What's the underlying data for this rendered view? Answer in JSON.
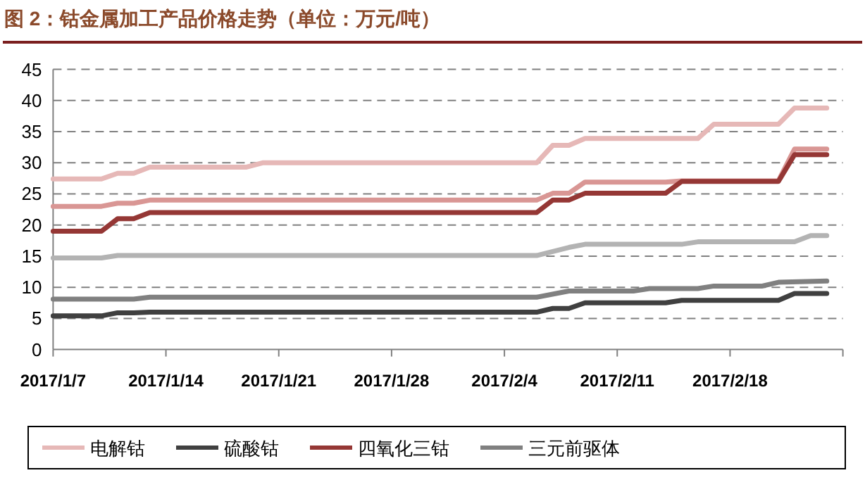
{
  "chart_data": {
    "type": "line",
    "title": "图 2：钴金属加工产品价格走势（单位：万元/吨）",
    "xlim": [
      "2017-01-07",
      "2017-02-25"
    ],
    "xticks": [
      {
        "value": "2017-01-07",
        "label": "2017/1/7"
      },
      {
        "value": "2017-01-14",
        "label": "2017/1/14"
      },
      {
        "value": "2017-01-21",
        "label": "2017/1/21"
      },
      {
        "value": "2017-01-28",
        "label": "2017/1/28"
      },
      {
        "value": "2017-02-04",
        "label": "2017/2/4"
      },
      {
        "value": "2017-02-11",
        "label": "2017/2/11"
      },
      {
        "value": "2017-02-18",
        "label": "2017/2/18"
      },
      {
        "value": "2017-02-25",
        "label": null
      }
    ],
    "ylim": [
      0,
      45
    ],
    "yticks": [
      0,
      5,
      10,
      15,
      20,
      25,
      30,
      35,
      40,
      45
    ],
    "grid": "y",
    "legend": "bottom",
    "marker": "none",
    "line_style": "solid",
    "series": [
      {
        "name": "电解钴",
        "color": "#e6b8b7",
        "x": [
          "2017-01-07",
          "2017-01-10",
          "2017-01-11",
          "2017-01-12",
          "2017-01-13",
          "2017-01-19",
          "2017-01-20",
          "2017-02-06",
          "2017-02-07",
          "2017-02-08",
          "2017-02-09",
          "2017-02-16",
          "2017-02-17",
          "2017-02-21",
          "2017-02-22",
          "2017-02-24"
        ],
        "values": [
          27.4,
          27.4,
          28.3,
          28.3,
          29.3,
          29.3,
          30,
          30,
          32.8,
          32.8,
          33.9,
          33.9,
          36.2,
          36.2,
          38.8,
          38.8
        ]
      },
      {
        "name": "硫酸钴",
        "color": "#404040",
        "x": [
          "2017-01-07",
          "2017-01-10",
          "2017-01-11",
          "2017-01-12",
          "2017-01-13",
          "2017-02-06",
          "2017-02-07",
          "2017-02-08",
          "2017-02-09",
          "2017-02-14",
          "2017-02-15",
          "2017-02-21",
          "2017-02-22",
          "2017-02-24"
        ],
        "values": [
          5.4,
          5.4,
          5.9,
          5.9,
          6,
          6,
          6.6,
          6.6,
          7.5,
          7.5,
          7.9,
          7.9,
          9,
          9
        ]
      },
      {
        "name": "四氧化三钴",
        "color": "#953735",
        "x": [
          "2017-01-07",
          "2017-01-10",
          "2017-01-11",
          "2017-01-12",
          "2017-01-13",
          "2017-02-06",
          "2017-02-07",
          "2017-02-08",
          "2017-02-09",
          "2017-02-14",
          "2017-02-15",
          "2017-02-21",
          "2017-02-22",
          "2017-02-24"
        ],
        "values": [
          19,
          19,
          21,
          21,
          22,
          22,
          24,
          24,
          25.1,
          25.1,
          27,
          27,
          31.3,
          31.3
        ]
      },
      {
        "name": "三元前驱体",
        "color": "#808080",
        "x": [
          "2017-01-07",
          "2017-01-12",
          "2017-01-13",
          "2017-02-06",
          "2017-02-08",
          "2017-02-12",
          "2017-02-13",
          "2017-02-16",
          "2017-02-17",
          "2017-02-20",
          "2017-02-21",
          "2017-02-24"
        ],
        "values": [
          8.1,
          8.1,
          8.4,
          8.4,
          9.4,
          9.4,
          9.8,
          9.8,
          10.2,
          10.2,
          10.8,
          11
        ]
      },
      {
        "color": "#d99694",
        "x": [
          "2017-01-07",
          "2017-01-10",
          "2017-01-11",
          "2017-01-12",
          "2017-01-13",
          "2017-02-06",
          "2017-02-07",
          "2017-02-08",
          "2017-02-09",
          "2017-02-14",
          "2017-02-15",
          "2017-02-21",
          "2017-02-22",
          "2017-02-24"
        ],
        "values": [
          23,
          23,
          23.5,
          23.5,
          24,
          24,
          25.1,
          25.1,
          26.9,
          26.9,
          27.1,
          27.1,
          32.2,
          32.2
        ]
      },
      {
        "color": "#b3b3b3",
        "x": [
          "2017-01-07",
          "2017-01-10",
          "2017-01-11",
          "2017-02-06",
          "2017-02-08",
          "2017-02-09",
          "2017-02-15",
          "2017-02-16",
          "2017-02-22",
          "2017-02-23",
          "2017-02-24"
        ],
        "values": [
          14.7,
          14.7,
          15.1,
          15.1,
          16.4,
          16.9,
          16.9,
          17.3,
          17.3,
          18.3,
          18.3
        ]
      }
    ]
  }
}
